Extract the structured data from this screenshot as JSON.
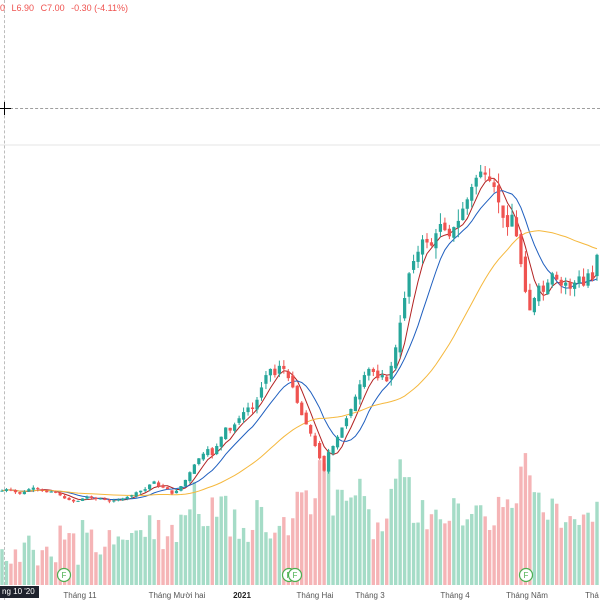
{
  "header": {
    "open": "0",
    "low": "L6.90",
    "close": "C7.00",
    "change": "-0.30 (-4.11%)"
  },
  "crosshair_date": "ng 10 '20",
  "chart_data": {
    "type": "candlestick",
    "x_ticks": [
      "Tháng 11",
      "Tháng Mười hai",
      "2021",
      "Tháng Hai",
      "Tháng 3",
      "Tháng 4",
      "Tháng Năm",
      "Thá"
    ],
    "bold_ticks": [
      "2021"
    ],
    "events": [
      {
        "label": "F"
      },
      {
        "label": "F"
      },
      {
        "label": "F"
      },
      {
        "label": "F"
      }
    ],
    "up_color": "#26a69a",
    "down_color": "#ef5350",
    "ma_colors": [
      "#b22222",
      "#1f5fbf",
      "#f5b83d"
    ],
    "closes": [
      2.15,
      2.2,
      2.18,
      2.1,
      2.05,
      2.12,
      2.2,
      2.25,
      2.2,
      2.15,
      2.1,
      2.12,
      2.08,
      2.0,
      1.9,
      1.85,
      1.8,
      1.82,
      1.9,
      1.95,
      1.92,
      1.88,
      1.9,
      1.85,
      1.8,
      1.83,
      1.86,
      1.9,
      1.95,
      2.0,
      2.1,
      2.15,
      2.2,
      2.35,
      2.45,
      2.3,
      2.25,
      2.2,
      2.05,
      2.15,
      2.3,
      2.5,
      2.75,
      3.0,
      3.2,
      3.35,
      3.5,
      3.3,
      3.6,
      3.9,
      4.2,
      4.1,
      4.3,
      4.5,
      4.7,
      4.85,
      4.8,
      5.1,
      5.5,
      5.9,
      6.1,
      5.9,
      6.2,
      6.1,
      5.8,
      5.5,
      5.0,
      4.6,
      4.3,
      4.0,
      3.6,
      3.2,
      2.8,
      3.4,
      3.6,
      3.9,
      4.2,
      4.5,
      4.8,
      5.2,
      5.6,
      5.9,
      6.1,
      6.0,
      5.8,
      5.9,
      5.7,
      6.2,
      6.8,
      7.6,
      8.4,
      9.2,
      9.6,
      9.9,
      10.3,
      10.2,
      10.1,
      10.5,
      10.8,
      10.6,
      10.4,
      10.7,
      10.9,
      11.3,
      11.6,
      12.0,
      12.3,
      12.5,
      12.4,
      12.2,
      12.0,
      11.5,
      11.0,
      10.7,
      11.1,
      10.4,
      9.5,
      8.6,
      8.0,
      8.4,
      8.8,
      8.6,
      8.9,
      9.2,
      9.0,
      8.8,
      8.9,
      8.7,
      8.9,
      9.1,
      8.8,
      9.2,
      9.0,
      9.8
    ]
  }
}
